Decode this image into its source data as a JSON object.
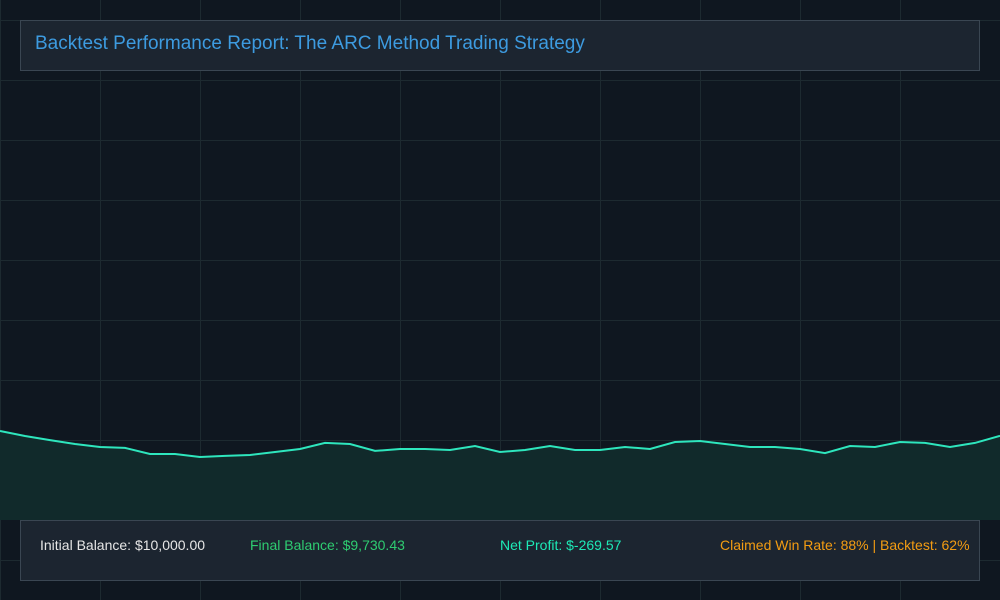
{
  "header": {
    "title": "Backtest Performance Report: The ARC Method Trading Strategy"
  },
  "chart_data": {
    "type": "area",
    "color": "#2ee6bd",
    "fill": "#112a2b",
    "values": [
      10000,
      9720,
      9490,
      9270,
      9100,
      9050,
      8710,
      8710,
      8540,
      8600,
      8650,
      8820,
      8990,
      9330,
      9270,
      8880,
      8990,
      8990,
      8930,
      9160,
      8820,
      8930,
      9160,
      8930,
      8930,
      9100,
      8990,
      9380,
      9440,
      9270,
      9100,
      9100,
      8990,
      8760,
      9160,
      9100,
      9380,
      9330,
      9100,
      9330,
      9730
    ],
    "ylim": [
      5000,
      30000
    ]
  },
  "footer": {
    "stats": [
      {
        "text": "Initial Balance: $10,000.00",
        "color": "#e6e6e6"
      },
      {
        "text": "Final Balance: $9,730.43",
        "color": "#2ecc71"
      },
      {
        "text": "Net Profit: $-269.57",
        "color": "#1de9b6"
      },
      {
        "text": "Claimed Win Rate: 88% | Backtest: 62%",
        "color": "#f39c12"
      }
    ]
  }
}
